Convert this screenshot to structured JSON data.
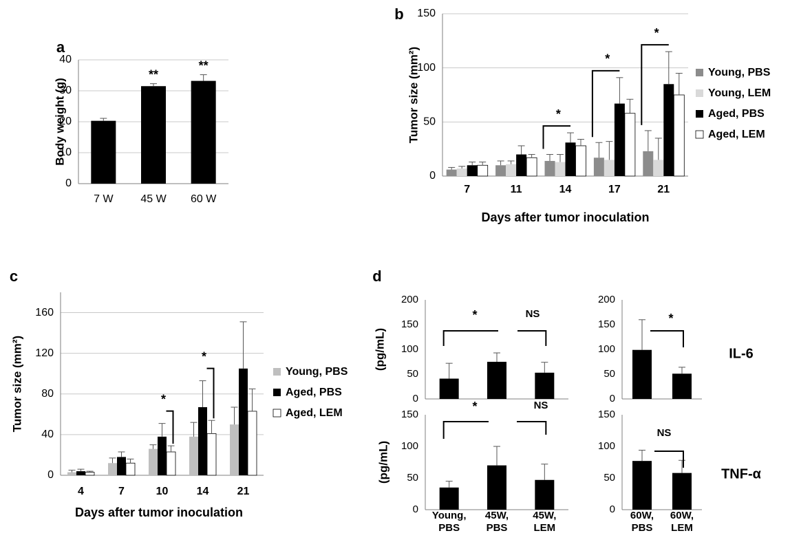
{
  "colors": {
    "dark_gray": "#8c8c8c",
    "light_gray": "#d9d9d9",
    "mid_gray": "#bfbfbf",
    "black": "#000000",
    "white": "#ffffff",
    "grid": "#c8c8c8",
    "axis": "#7f7f7f"
  },
  "chart_data": [
    {
      "panel": "a",
      "type": "bar",
      "categories": [
        "7 W",
        "45 W",
        "60 W"
      ],
      "values": [
        20.3,
        31.5,
        33.2
      ],
      "errors": [
        0.8,
        0.8,
        2.0
      ],
      "annotations": [
        "",
        "**",
        "**"
      ],
      "ylabel": "Body weight (g)",
      "xlabel": "",
      "ylim": [
        0,
        40
      ],
      "yticks": [
        0,
        10,
        20,
        30,
        40
      ],
      "grid": true,
      "legend": "none"
    },
    {
      "panel": "b",
      "type": "bar",
      "categories": [
        "7",
        "11",
        "14",
        "17",
        "21"
      ],
      "series": [
        {
          "name": "Young, PBS",
          "values": [
            6,
            10,
            14,
            17,
            23
          ],
          "errors": [
            2,
            4,
            6,
            14,
            19
          ]
        },
        {
          "name": "Young, LEM",
          "values": [
            7,
            11,
            13,
            15,
            15
          ],
          "errors": [
            2,
            3,
            7,
            17,
            20
          ]
        },
        {
          "name": "Aged, PBS",
          "values": [
            10,
            20,
            31,
            67,
            85
          ],
          "errors": [
            3,
            8,
            9,
            24,
            30
          ]
        },
        {
          "name": "Aged, LEM",
          "values": [
            10,
            17,
            28,
            58,
            75
          ],
          "errors": [
            3,
            3,
            6,
            13,
            20
          ]
        }
      ],
      "significance": [
        "",
        "",
        "*",
        "*",
        "*"
      ],
      "xlabel": "Days after tumor inoculation",
      "ylabel": "Tumor size (mm²)",
      "ylim": [
        0,
        150
      ],
      "yticks": [
        0,
        50,
        100,
        150
      ],
      "grid": true,
      "legend": "right"
    },
    {
      "panel": "c",
      "type": "bar",
      "categories": [
        "4",
        "7",
        "10",
        "14",
        "21"
      ],
      "series": [
        {
          "name": "Young, PBS",
          "values": [
            3,
            12,
            26,
            38,
            50
          ],
          "errors": [
            2,
            5,
            4,
            14,
            17
          ]
        },
        {
          "name": "Aged, PBS",
          "values": [
            4,
            18,
            38,
            67,
            105
          ],
          "errors": [
            2,
            5,
            13,
            26,
            46
          ]
        },
        {
          "name": "Aged, LEM",
          "values": [
            3,
            12,
            23,
            41,
            63
          ],
          "errors": [
            1,
            4,
            6,
            13,
            22
          ]
        }
      ],
      "significance": [
        "",
        "",
        "*",
        "*",
        ""
      ],
      "xlabel": "Days after tumor inoculation",
      "ylabel": "Tumor size (mm²)",
      "ylim": [
        0,
        180
      ],
      "yticks": [
        0,
        40,
        80,
        120,
        160
      ],
      "grid": true,
      "legend": "right"
    },
    {
      "panel": "d",
      "type": "bar",
      "cytokine": "IL-6",
      "categories": [
        "Young,\nPBS",
        "45W,\nPBS",
        "45W,\nLEM"
      ],
      "values": [
        41,
        75,
        53
      ],
      "errors": [
        31,
        18,
        21
      ],
      "comparisons": [
        "*",
        "NS"
      ],
      "ylabel": "(pg/mL)",
      "ylim": [
        0,
        200
      ],
      "yticks": [
        0,
        50,
        100,
        150,
        200
      ]
    },
    {
      "panel": "d",
      "type": "bar",
      "cytokine": "IL-6",
      "categories": [
        "60W,\nPBS",
        "60W,\nLEM"
      ],
      "values": [
        99,
        51
      ],
      "errors": [
        61,
        13
      ],
      "comparisons": [
        "*"
      ],
      "ylim": [
        0,
        200
      ],
      "yticks": [
        0,
        50,
        100,
        150,
        200
      ]
    },
    {
      "panel": "d",
      "type": "bar",
      "cytokine": "TNF-α",
      "categories": [
        "Young,\nPBS",
        "45W,\nPBS",
        "45W,\nLEM"
      ],
      "values": [
        35,
        70,
        47
      ],
      "errors": [
        10,
        30,
        25
      ],
      "comparisons": [
        "*",
        "NS"
      ],
      "ylabel": "(pg/mL)",
      "ylim": [
        0,
        150
      ],
      "yticks": [
        0,
        50,
        100,
        150
      ]
    },
    {
      "panel": "d",
      "type": "bar",
      "cytokine": "TNF-α",
      "categories": [
        "60W,\nPBS",
        "60W,\nLEM"
      ],
      "values": [
        77,
        58
      ],
      "errors": [
        17,
        20
      ],
      "comparisons": [
        "NS"
      ],
      "ylim": [
        0,
        150
      ],
      "yticks": [
        0,
        50,
        100,
        150
      ]
    }
  ]
}
